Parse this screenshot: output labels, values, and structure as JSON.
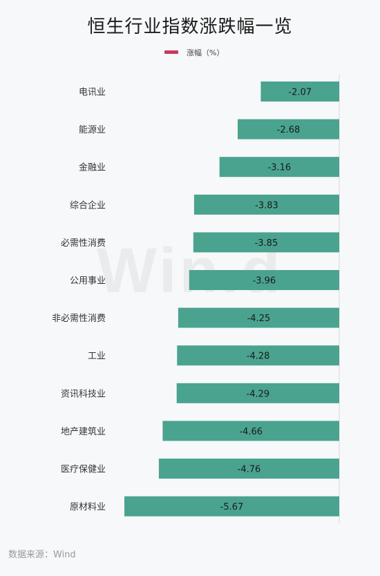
{
  "title": "恒生行业指数涨跌幅一览",
  "legend": {
    "label": "涨幅（%）",
    "color": "#c83a5a"
  },
  "watermark": "Win.d",
  "source": "数据来源：Wind",
  "bar_color": "#4aa38f",
  "chart_data": {
    "type": "bar",
    "orientation": "horizontal",
    "title": "恒生行业指数涨跌幅一览",
    "categories": [
      "电讯业",
      "能源业",
      "金融业",
      "综合企业",
      "必需性消费",
      "公用事业",
      "非必需性消费",
      "工业",
      "资讯科技业",
      "地产建筑业",
      "医疗保健业",
      "原材料业"
    ],
    "series": [
      {
        "name": "涨幅（%）",
        "values": [
          -2.07,
          -2.68,
          -3.16,
          -3.83,
          -3.85,
          -3.96,
          -4.25,
          -4.28,
          -4.29,
          -4.66,
          -4.76,
          -5.67
        ]
      }
    ],
    "data_labels": [
      "-2.07",
      "-2.68",
      "-3.16",
      "-3.83",
      "-3.85",
      "-3.96",
      "-4.25",
      "-4.28",
      "-4.29",
      "-4.66",
      "-4.76",
      "-5.67"
    ],
    "xlim": [
      -5.67,
      0
    ],
    "grid": false,
    "legend_position": "top-center"
  }
}
